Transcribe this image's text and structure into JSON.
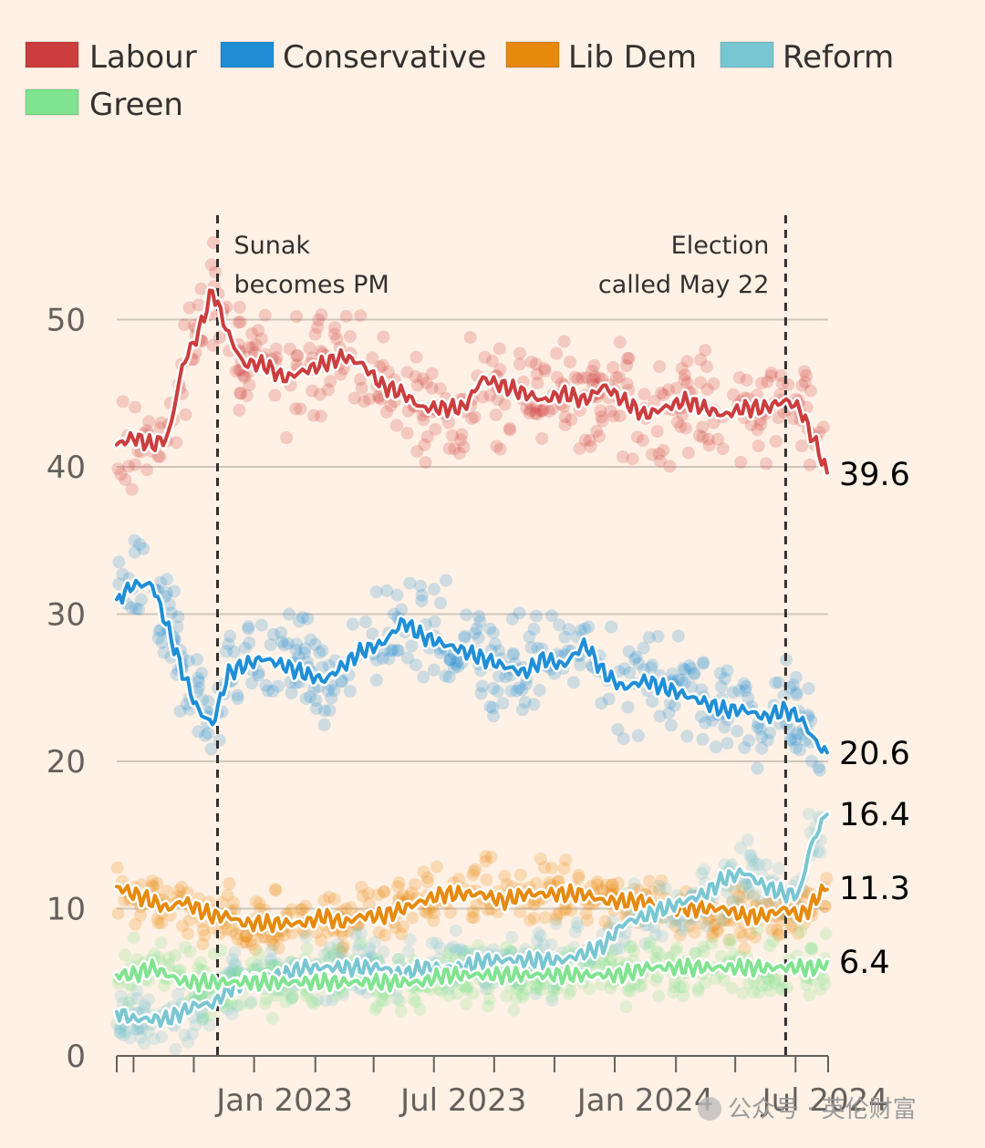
{
  "chart_data": {
    "type": "line",
    "title": "",
    "xlabel": "",
    "ylabel": "",
    "ylim": [
      0,
      55
    ],
    "yticks": [
      0,
      10,
      20,
      30,
      40,
      50
    ],
    "xlim": [
      "2022-07-15",
      "2024-07-04"
    ],
    "xticks": [
      {
        "date": "2023-01-01",
        "label": "Jan 2023"
      },
      {
        "date": "2023-07-01",
        "label": "Jul 2023"
      },
      {
        "date": "2024-01-01",
        "label": "Jan 2024"
      },
      {
        "date": "2024-07-01",
        "label": "Jul 2024"
      }
    ],
    "grid": "horizontal",
    "legend_position": "top-left",
    "annotations": [
      {
        "date": "2022-10-25",
        "lines": [
          "Sunak",
          "becomes PM"
        ],
        "side": "right"
      },
      {
        "date": "2024-05-22",
        "lines": [
          "Election",
          "called May 22"
        ],
        "side": "left"
      }
    ],
    "series": [
      {
        "name": "Labour",
        "color": "#cc3d3d",
        "end_label": "39.6",
        "points": [
          [
            "2022-07-15",
            41.5
          ],
          [
            "2022-08-01",
            42
          ],
          [
            "2022-08-20",
            41.5
          ],
          [
            "2022-09-05",
            42
          ],
          [
            "2022-09-20",
            47
          ],
          [
            "2022-10-05",
            49
          ],
          [
            "2022-10-20",
            52
          ],
          [
            "2022-11-05",
            49
          ],
          [
            "2022-11-20",
            47
          ],
          [
            "2022-12-10",
            47
          ],
          [
            "2023-01-01",
            46
          ],
          [
            "2023-01-20",
            46.5
          ],
          [
            "2023-02-10",
            47
          ],
          [
            "2023-03-01",
            47.5
          ],
          [
            "2023-03-20",
            47
          ],
          [
            "2023-04-10",
            45.5
          ],
          [
            "2023-05-01",
            45
          ],
          [
            "2023-05-20",
            44
          ],
          [
            "2023-06-10",
            44
          ],
          [
            "2023-07-01",
            44
          ],
          [
            "2023-07-20",
            46
          ],
          [
            "2023-08-10",
            45.5
          ],
          [
            "2023-09-01",
            45
          ],
          [
            "2023-09-20",
            44.5
          ],
          [
            "2023-10-10",
            45
          ],
          [
            "2023-11-01",
            44.5
          ],
          [
            "2023-11-20",
            45.5
          ],
          [
            "2023-12-10",
            44.5
          ],
          [
            "2024-01-01",
            43.5
          ],
          [
            "2024-01-20",
            44
          ],
          [
            "2024-02-10",
            44.5
          ],
          [
            "2024-03-01",
            44
          ],
          [
            "2024-03-20",
            43.5
          ],
          [
            "2024-04-10",
            44
          ],
          [
            "2024-05-01",
            44
          ],
          [
            "2024-05-22",
            44.5
          ],
          [
            "2024-06-05",
            44
          ],
          [
            "2024-06-15",
            42.5
          ],
          [
            "2024-06-25",
            41
          ],
          [
            "2024-07-03",
            39.6
          ]
        ]
      },
      {
        "name": "Conservative",
        "color": "#1f8ed6",
        "end_label": "20.6",
        "points": [
          [
            "2022-07-15",
            31
          ],
          [
            "2022-08-01",
            32
          ],
          [
            "2022-08-20",
            32
          ],
          [
            "2022-09-05",
            29
          ],
          [
            "2022-09-20",
            26
          ],
          [
            "2022-10-05",
            23.5
          ],
          [
            "2022-10-20",
            22.5
          ],
          [
            "2022-11-05",
            26
          ],
          [
            "2022-11-20",
            26.5
          ],
          [
            "2022-12-10",
            27
          ],
          [
            "2023-01-01",
            26.5
          ],
          [
            "2023-01-20",
            26
          ],
          [
            "2023-02-10",
            25.5
          ],
          [
            "2023-03-01",
            26.5
          ],
          [
            "2023-03-20",
            27.5
          ],
          [
            "2023-04-10",
            28
          ],
          [
            "2023-05-01",
            29.5
          ],
          [
            "2023-05-20",
            28.5
          ],
          [
            "2023-06-10",
            28
          ],
          [
            "2023-07-01",
            27.5
          ],
          [
            "2023-07-20",
            27
          ],
          [
            "2023-08-10",
            26.5
          ],
          [
            "2023-09-01",
            26
          ],
          [
            "2023-09-20",
            27
          ],
          [
            "2023-10-10",
            26.5
          ],
          [
            "2023-11-01",
            28
          ],
          [
            "2023-11-20",
            26
          ],
          [
            "2023-12-10",
            25
          ],
          [
            "2024-01-01",
            25.5
          ],
          [
            "2024-01-20",
            25
          ],
          [
            "2024-02-10",
            24.5
          ],
          [
            "2024-03-01",
            24
          ],
          [
            "2024-03-20",
            23.5
          ],
          [
            "2024-04-10",
            23.5
          ],
          [
            "2024-05-01",
            23
          ],
          [
            "2024-05-22",
            23.5
          ],
          [
            "2024-06-05",
            23
          ],
          [
            "2024-06-15",
            22
          ],
          [
            "2024-06-25",
            21
          ],
          [
            "2024-07-03",
            20.6
          ]
        ]
      },
      {
        "name": "Lib Dem",
        "color": "#e6890c",
        "end_label": "11.3",
        "points": [
          [
            "2022-07-15",
            11.5
          ],
          [
            "2022-08-01",
            11
          ],
          [
            "2022-08-20",
            10.5
          ],
          [
            "2022-09-05",
            10
          ],
          [
            "2022-09-20",
            10.5
          ],
          [
            "2022-10-05",
            10
          ],
          [
            "2022-10-20",
            9.5
          ],
          [
            "2022-11-05",
            9.5
          ],
          [
            "2022-11-20",
            9
          ],
          [
            "2022-12-10",
            9
          ],
          [
            "2023-01-01",
            9
          ],
          [
            "2023-01-20",
            9
          ],
          [
            "2023-02-10",
            9.5
          ],
          [
            "2023-03-01",
            9
          ],
          [
            "2023-03-20",
            9.5
          ],
          [
            "2023-04-10",
            9.5
          ],
          [
            "2023-05-01",
            10
          ],
          [
            "2023-05-20",
            10.5
          ],
          [
            "2023-06-10",
            11
          ],
          [
            "2023-07-01",
            11
          ],
          [
            "2023-07-20",
            11
          ],
          [
            "2023-08-10",
            10.5
          ],
          [
            "2023-09-01",
            11
          ],
          [
            "2023-09-20",
            11
          ],
          [
            "2023-10-10",
            11
          ],
          [
            "2023-11-01",
            11
          ],
          [
            "2023-11-20",
            10.5
          ],
          [
            "2023-12-10",
            10.5
          ],
          [
            "2024-01-01",
            10.5
          ],
          [
            "2024-01-20",
            10
          ],
          [
            "2024-02-10",
            10
          ],
          [
            "2024-03-01",
            10
          ],
          [
            "2024-03-20",
            10
          ],
          [
            "2024-04-10",
            9.5
          ],
          [
            "2024-05-01",
            9.5
          ],
          [
            "2024-05-22",
            10
          ],
          [
            "2024-06-05",
            9.5
          ],
          [
            "2024-06-15",
            10
          ],
          [
            "2024-06-25",
            11
          ],
          [
            "2024-07-03",
            11.3
          ]
        ]
      },
      {
        "name": "Reform",
        "color": "#78c6d2",
        "end_label": "16.4",
        "points": [
          [
            "2022-07-15",
            3
          ],
          [
            "2022-08-01",
            2.5
          ],
          [
            "2022-08-20",
            2.5
          ],
          [
            "2022-09-05",
            2.5
          ],
          [
            "2022-09-20",
            3
          ],
          [
            "2022-10-05",
            3.5
          ],
          [
            "2022-10-20",
            3.5
          ],
          [
            "2022-11-05",
            4.5
          ],
          [
            "2022-11-20",
            5
          ],
          [
            "2022-12-10",
            5.5
          ],
          [
            "2023-01-01",
            5.5
          ],
          [
            "2023-01-20",
            6
          ],
          [
            "2023-02-10",
            6
          ],
          [
            "2023-03-01",
            6
          ],
          [
            "2023-03-20",
            6
          ],
          [
            "2023-04-10",
            6
          ],
          [
            "2023-05-01",
            5.5
          ],
          [
            "2023-05-20",
            6
          ],
          [
            "2023-06-10",
            6
          ],
          [
            "2023-07-01",
            6
          ],
          [
            "2023-07-20",
            6.5
          ],
          [
            "2023-08-10",
            6.5
          ],
          [
            "2023-09-01",
            6.5
          ],
          [
            "2023-09-20",
            6.5
          ],
          [
            "2023-10-10",
            6.5
          ],
          [
            "2023-11-01",
            7
          ],
          [
            "2023-11-20",
            7.5
          ],
          [
            "2023-12-10",
            9
          ],
          [
            "2024-01-01",
            9.5
          ],
          [
            "2024-01-20",
            10
          ],
          [
            "2024-02-10",
            10.5
          ],
          [
            "2024-03-01",
            11
          ],
          [
            "2024-03-20",
            12
          ],
          [
            "2024-04-10",
            12.5
          ],
          [
            "2024-05-01",
            11.5
          ],
          [
            "2024-05-22",
            11
          ],
          [
            "2024-06-05",
            11
          ],
          [
            "2024-06-15",
            14
          ],
          [
            "2024-06-25",
            15.5
          ],
          [
            "2024-07-03",
            16.4
          ]
        ]
      },
      {
        "name": "Green",
        "color": "#7fe38f",
        "end_label": "6.4",
        "points": [
          [
            "2022-07-15",
            5.5
          ],
          [
            "2022-08-01",
            5.5
          ],
          [
            "2022-08-20",
            6
          ],
          [
            "2022-09-05",
            5.5
          ],
          [
            "2022-09-20",
            5
          ],
          [
            "2022-10-05",
            5
          ],
          [
            "2022-10-20",
            5
          ],
          [
            "2022-11-05",
            5
          ],
          [
            "2022-11-20",
            5
          ],
          [
            "2022-12-10",
            5
          ],
          [
            "2023-01-01",
            5
          ],
          [
            "2023-01-20",
            5
          ],
          [
            "2023-02-10",
            5
          ],
          [
            "2023-03-01",
            5
          ],
          [
            "2023-03-20",
            5
          ],
          [
            "2023-04-10",
            5
          ],
          [
            "2023-05-01",
            5
          ],
          [
            "2023-05-20",
            5
          ],
          [
            "2023-06-10",
            5.5
          ],
          [
            "2023-07-01",
            5.5
          ],
          [
            "2023-07-20",
            5.5
          ],
          [
            "2023-08-10",
            5.5
          ],
          [
            "2023-09-01",
            5.5
          ],
          [
            "2023-09-20",
            5.5
          ],
          [
            "2023-10-10",
            5.5
          ],
          [
            "2023-11-01",
            5.5
          ],
          [
            "2023-11-20",
            5.5
          ],
          [
            "2023-12-10",
            5.5
          ],
          [
            "2024-01-01",
            6
          ],
          [
            "2024-01-20",
            6
          ],
          [
            "2024-02-10",
            6
          ],
          [
            "2024-03-01",
            6
          ],
          [
            "2024-03-20",
            6
          ],
          [
            "2024-04-10",
            6
          ],
          [
            "2024-05-01",
            6
          ],
          [
            "2024-05-22",
            6
          ],
          [
            "2024-06-05",
            6
          ],
          [
            "2024-06-15",
            6
          ],
          [
            "2024-06-25",
            6
          ],
          [
            "2024-07-03",
            6.4
          ]
        ]
      }
    ]
  },
  "watermark": "公众号 · 英伦财富"
}
